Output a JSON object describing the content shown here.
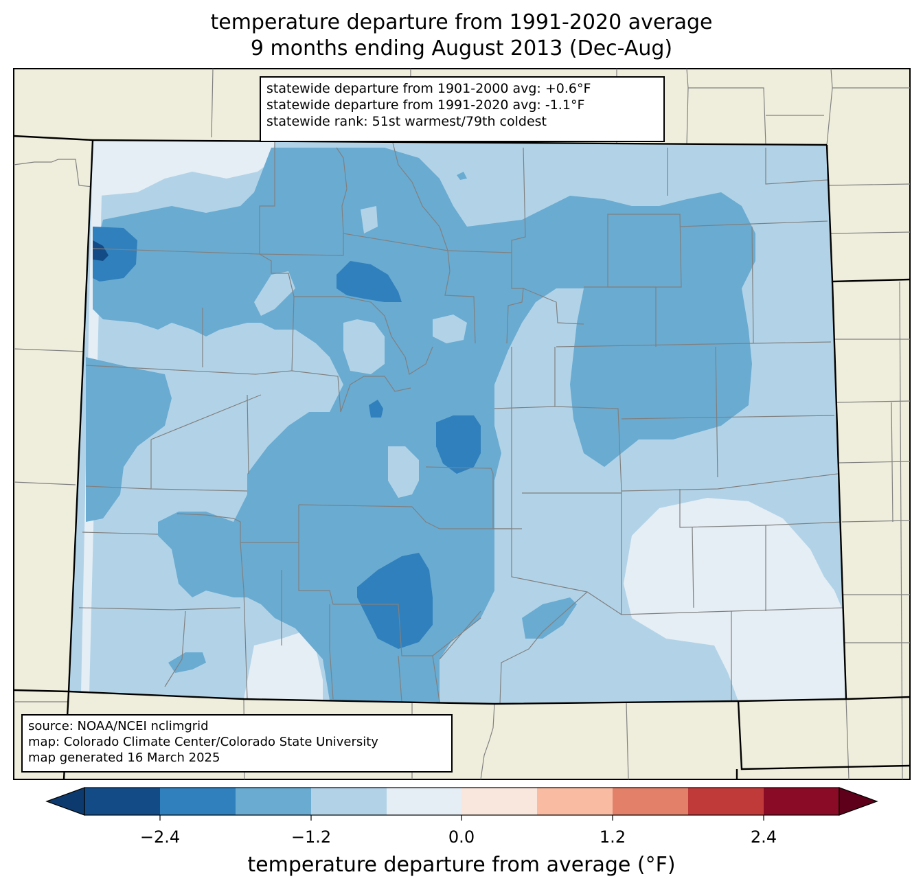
{
  "title": {
    "line1": "temperature departure from 1991-2020 average",
    "line2": "9 months ending August 2013 (Dec-Aug)"
  },
  "stats_box": {
    "line1": "statewide departure from 1901-2000 avg: +0.6°F",
    "line2": "statewide departure from 1991-2020 avg: -1.1°F",
    "line3": "statewide rank: 51st warmest/79th coldest"
  },
  "source_box": {
    "line1": "source: NOAA/NCEI nclimgrid",
    "line2": "map: Colorado Climate Center/Colorado State University",
    "line3": "map generated 16 March 2025"
  },
  "colorbar": {
    "label": "temperature departure from average (°F)",
    "ticks": [
      "−2.4",
      "−1.2",
      "0.0",
      "1.2",
      "2.4"
    ],
    "tick_values": [
      -2.4,
      -1.2,
      0.0,
      1.2,
      2.4
    ],
    "levels": [
      -3.0,
      -2.4,
      -1.8,
      -1.2,
      -0.6,
      0.0,
      0.6,
      1.2,
      1.8,
      2.4,
      3.0
    ],
    "colors": [
      "#0d3a6e",
      "#134b87",
      "#3080bd",
      "#6aabd1",
      "#b2d3e7",
      "#e5eef5",
      "#f9e6dc",
      "#f9bca3",
      "#e2806a",
      "#c13a3a",
      "#890b25",
      "#5e001a"
    ]
  },
  "colors": {
    "background_land": "#efeedc",
    "state_border": "#000000",
    "county_border": "#808080"
  }
}
